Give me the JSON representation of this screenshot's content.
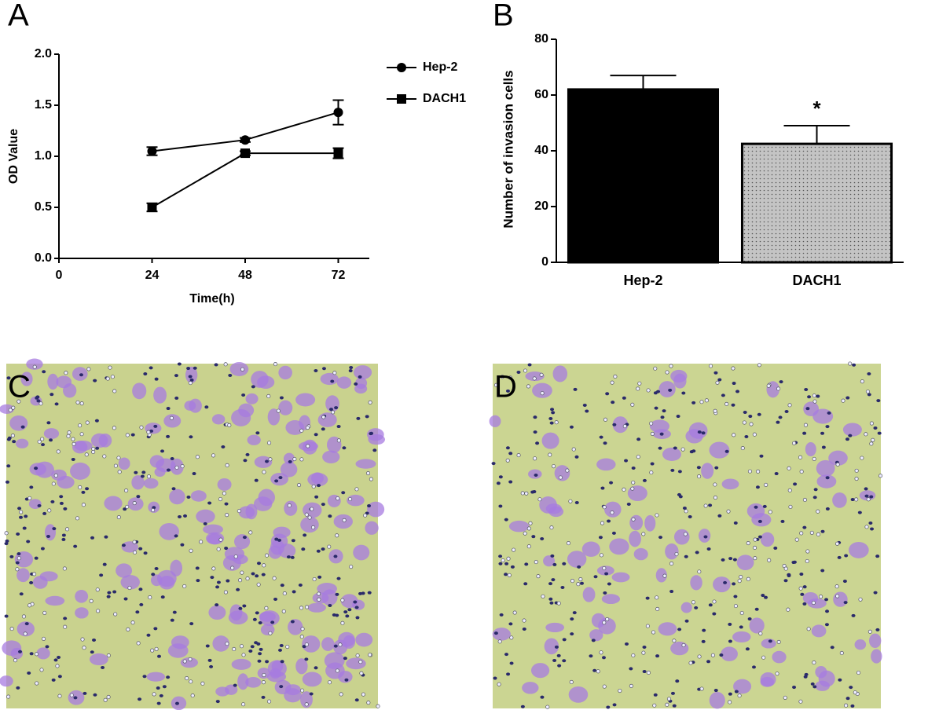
{
  "chart_data": [
    {
      "type": "line",
      "panel_label": "A",
      "x_label": "Time(h)",
      "y_label": "OD Value",
      "x": [
        24,
        48,
        72
      ],
      "xlim": [
        0,
        80
      ],
      "xticks": [
        0,
        24,
        48,
        72
      ],
      "ylim": [
        0,
        2
      ],
      "yticks": [
        {
          "value": 0,
          "label": "0.0"
        },
        {
          "value": 0.5,
          "label": "0.5"
        },
        {
          "value": 1,
          "label": "1.0"
        },
        {
          "value": 1.5,
          "label": "1.5"
        },
        {
          "value": 2,
          "label": "2.0"
        }
      ],
      "series": [
        {
          "name": "Hep-2",
          "color": "#000000",
          "marker": "circle",
          "values": [
            1.05,
            1.16,
            1.43
          ],
          "errors": [
            0.04,
            0.02,
            0.12
          ]
        },
        {
          "name": "DACH1",
          "color": "#000000",
          "marker": "square",
          "values": [
            0.5,
            1.03,
            1.03
          ],
          "errors": [
            0.04,
            0.02,
            0.05
          ]
        }
      ]
    },
    {
      "type": "bar",
      "panel_label": "B",
      "y_label": "Number of invasion cells",
      "categories": [
        "Hep-2",
        "DACH1"
      ],
      "values": [
        62,
        42.5
      ],
      "errors": [
        5,
        6.5
      ],
      "colors": [
        "#000000",
        "#c4c4c4"
      ],
      "annotations": [
        null,
        "*"
      ],
      "ylim": [
        0,
        80
      ],
      "yticks": [
        0,
        20,
        40,
        60,
        80
      ]
    }
  ],
  "images": [
    {
      "label": "C"
    },
    {
      "label": "D"
    }
  ]
}
